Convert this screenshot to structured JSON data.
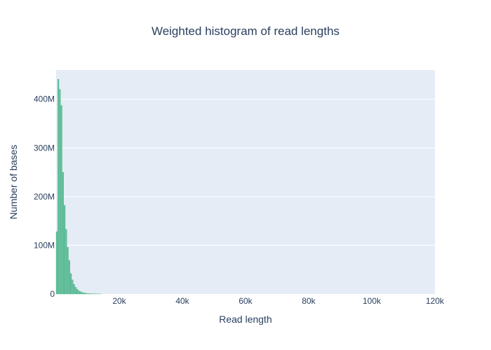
{
  "chart_data": {
    "type": "bar",
    "title": "Weighted histogram of read lengths",
    "xlabel": "Read length",
    "ylabel": "Number of bases",
    "xlim": [
      0,
      120000
    ],
    "ylim": [
      0,
      460000000
    ],
    "x_ticks": [
      {
        "value": 20000,
        "label": "20k"
      },
      {
        "value": 40000,
        "label": "40k"
      },
      {
        "value": 60000,
        "label": "60k"
      },
      {
        "value": 80000,
        "label": "80k"
      },
      {
        "value": 100000,
        "label": "100k"
      },
      {
        "value": 120000,
        "label": "120k"
      }
    ],
    "y_ticks": [
      {
        "value": 0,
        "label": "0"
      },
      {
        "value": 100000000,
        "label": "100M"
      },
      {
        "value": 200000000,
        "label": "200M"
      },
      {
        "value": 300000000,
        "label": "300M"
      },
      {
        "value": 400000000,
        "label": "400M"
      }
    ],
    "bin_width": 500,
    "bin_starts": [
      0,
      500,
      1000,
      1500,
      2000,
      2500,
      3000,
      3500,
      4000,
      4500,
      5000,
      5500,
      6000,
      6500,
      7000,
      7500,
      8000,
      8500,
      9000,
      9500,
      10000,
      10500,
      11000,
      11500,
      12000,
      12500,
      13000,
      13500,
      14000
    ],
    "values": [
      128000000,
      441000000,
      420000000,
      387000000,
      250000000,
      182000000,
      133000000,
      96000000,
      69000000,
      42000000,
      29000000,
      20000000,
      14000000,
      10000000,
      7000000,
      5000000,
      3500000,
      2500000,
      1800000,
      1300000,
      900000,
      700000,
      500000,
      400000,
      300000,
      200000,
      150000,
      100000,
      80000
    ],
    "bar_color": "#66c2a5",
    "bar_line_color": "#2ca25f",
    "plot_bgcolor": "#e5ecf6",
    "grid": true,
    "legend": false
  }
}
